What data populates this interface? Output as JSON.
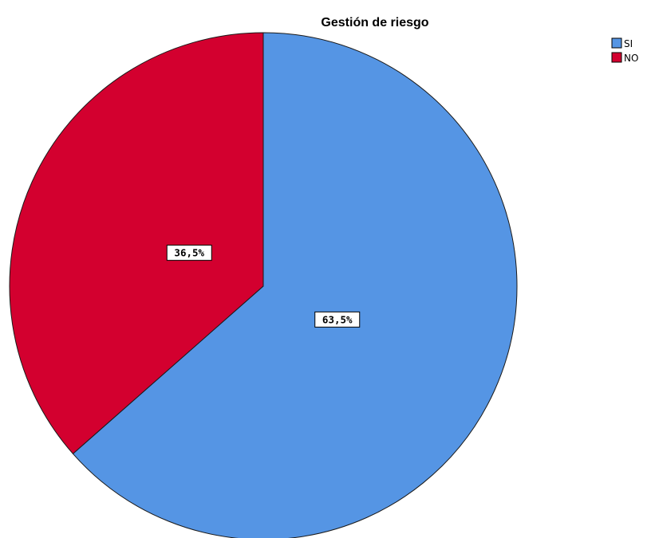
{
  "chart_data": {
    "type": "pie",
    "title": "Gestión de riesgo",
    "categories": [
      "SI",
      "NO"
    ],
    "values": [
      63.5,
      36.5
    ],
    "data_labels": [
      "63,5%",
      "36,5%"
    ],
    "colors": [
      "#5595e4",
      "#d3002f"
    ],
    "start": "12 o'clock",
    "direction": "clockwise",
    "legend_position": "top-right"
  }
}
